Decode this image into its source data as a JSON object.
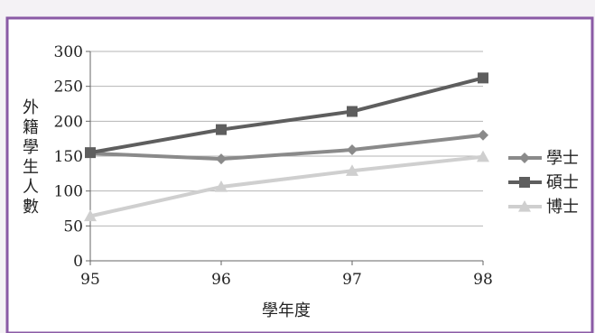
{
  "chart_data": {
    "type": "line",
    "x": [
      95,
      96,
      97,
      98
    ],
    "xticks": [
      "95",
      "96",
      "97",
      "98"
    ],
    "yticks": [
      "0",
      "50",
      "100",
      "150",
      "200",
      "250",
      "300"
    ],
    "ylim": [
      0,
      300
    ],
    "xlabel": "學年度",
    "ylabel": "外籍學生人數",
    "grid": "horizontal",
    "legend_position": "right",
    "series": [
      {
        "name": "學士",
        "values": [
          154,
          146,
          159,
          180
        ],
        "color": "#8a8a8a",
        "marker": "diamond"
      },
      {
        "name": "碩士",
        "values": [
          155,
          188,
          214,
          262
        ],
        "color": "#5e5e5e",
        "marker": "square"
      },
      {
        "name": "博士",
        "values": [
          64,
          106,
          129,
          149
        ],
        "color": "#cfcfcf",
        "marker": "triangle"
      }
    ]
  },
  "colors": {
    "frame_border": "#8a5aa5",
    "plot_background": "#ffffff",
    "page_background": "#f4f2f5",
    "gridline": "#b5b5b5"
  }
}
